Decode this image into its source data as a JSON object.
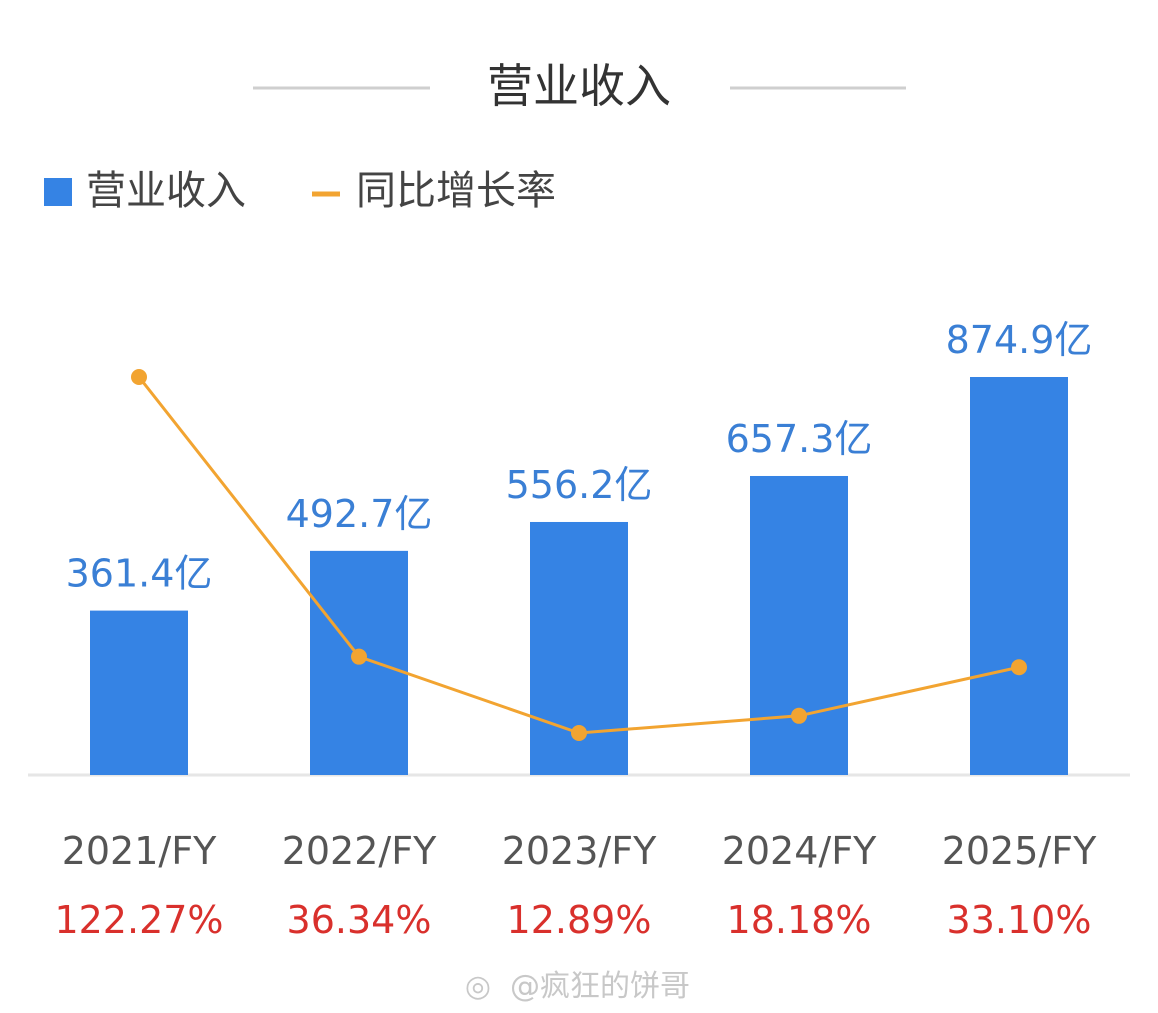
{
  "chart_data": {
    "type": "bar",
    "title": "营业收入",
    "categories": [
      "2021/FY",
      "2022/FY",
      "2023/FY",
      "2024/FY",
      "2025/FY"
    ],
    "series": [
      {
        "name": "营业收入",
        "kind": "bar",
        "values": [
          361.4,
          492.7,
          556.2,
          657.3,
          874.9
        ],
        "labels": [
          "361.4亿",
          "492.7亿",
          "556.2亿",
          "657.3亿",
          "874.9亿"
        ]
      },
      {
        "name": "同比增长率",
        "kind": "line",
        "values": [
          122.27,
          36.34,
          12.89,
          18.18,
          33.1
        ],
        "labels": [
          "122.27%",
          "36.34%",
          "12.89%",
          "18.18%",
          "33.10%"
        ]
      }
    ],
    "legend": "top-left",
    "grid": false
  },
  "colors": {
    "bar": "#3583e4",
    "line": "#f2a431",
    "pct_text": "#d9302c",
    "value_text": "#3a7fd5"
  },
  "watermark": "@疯狂的饼哥"
}
